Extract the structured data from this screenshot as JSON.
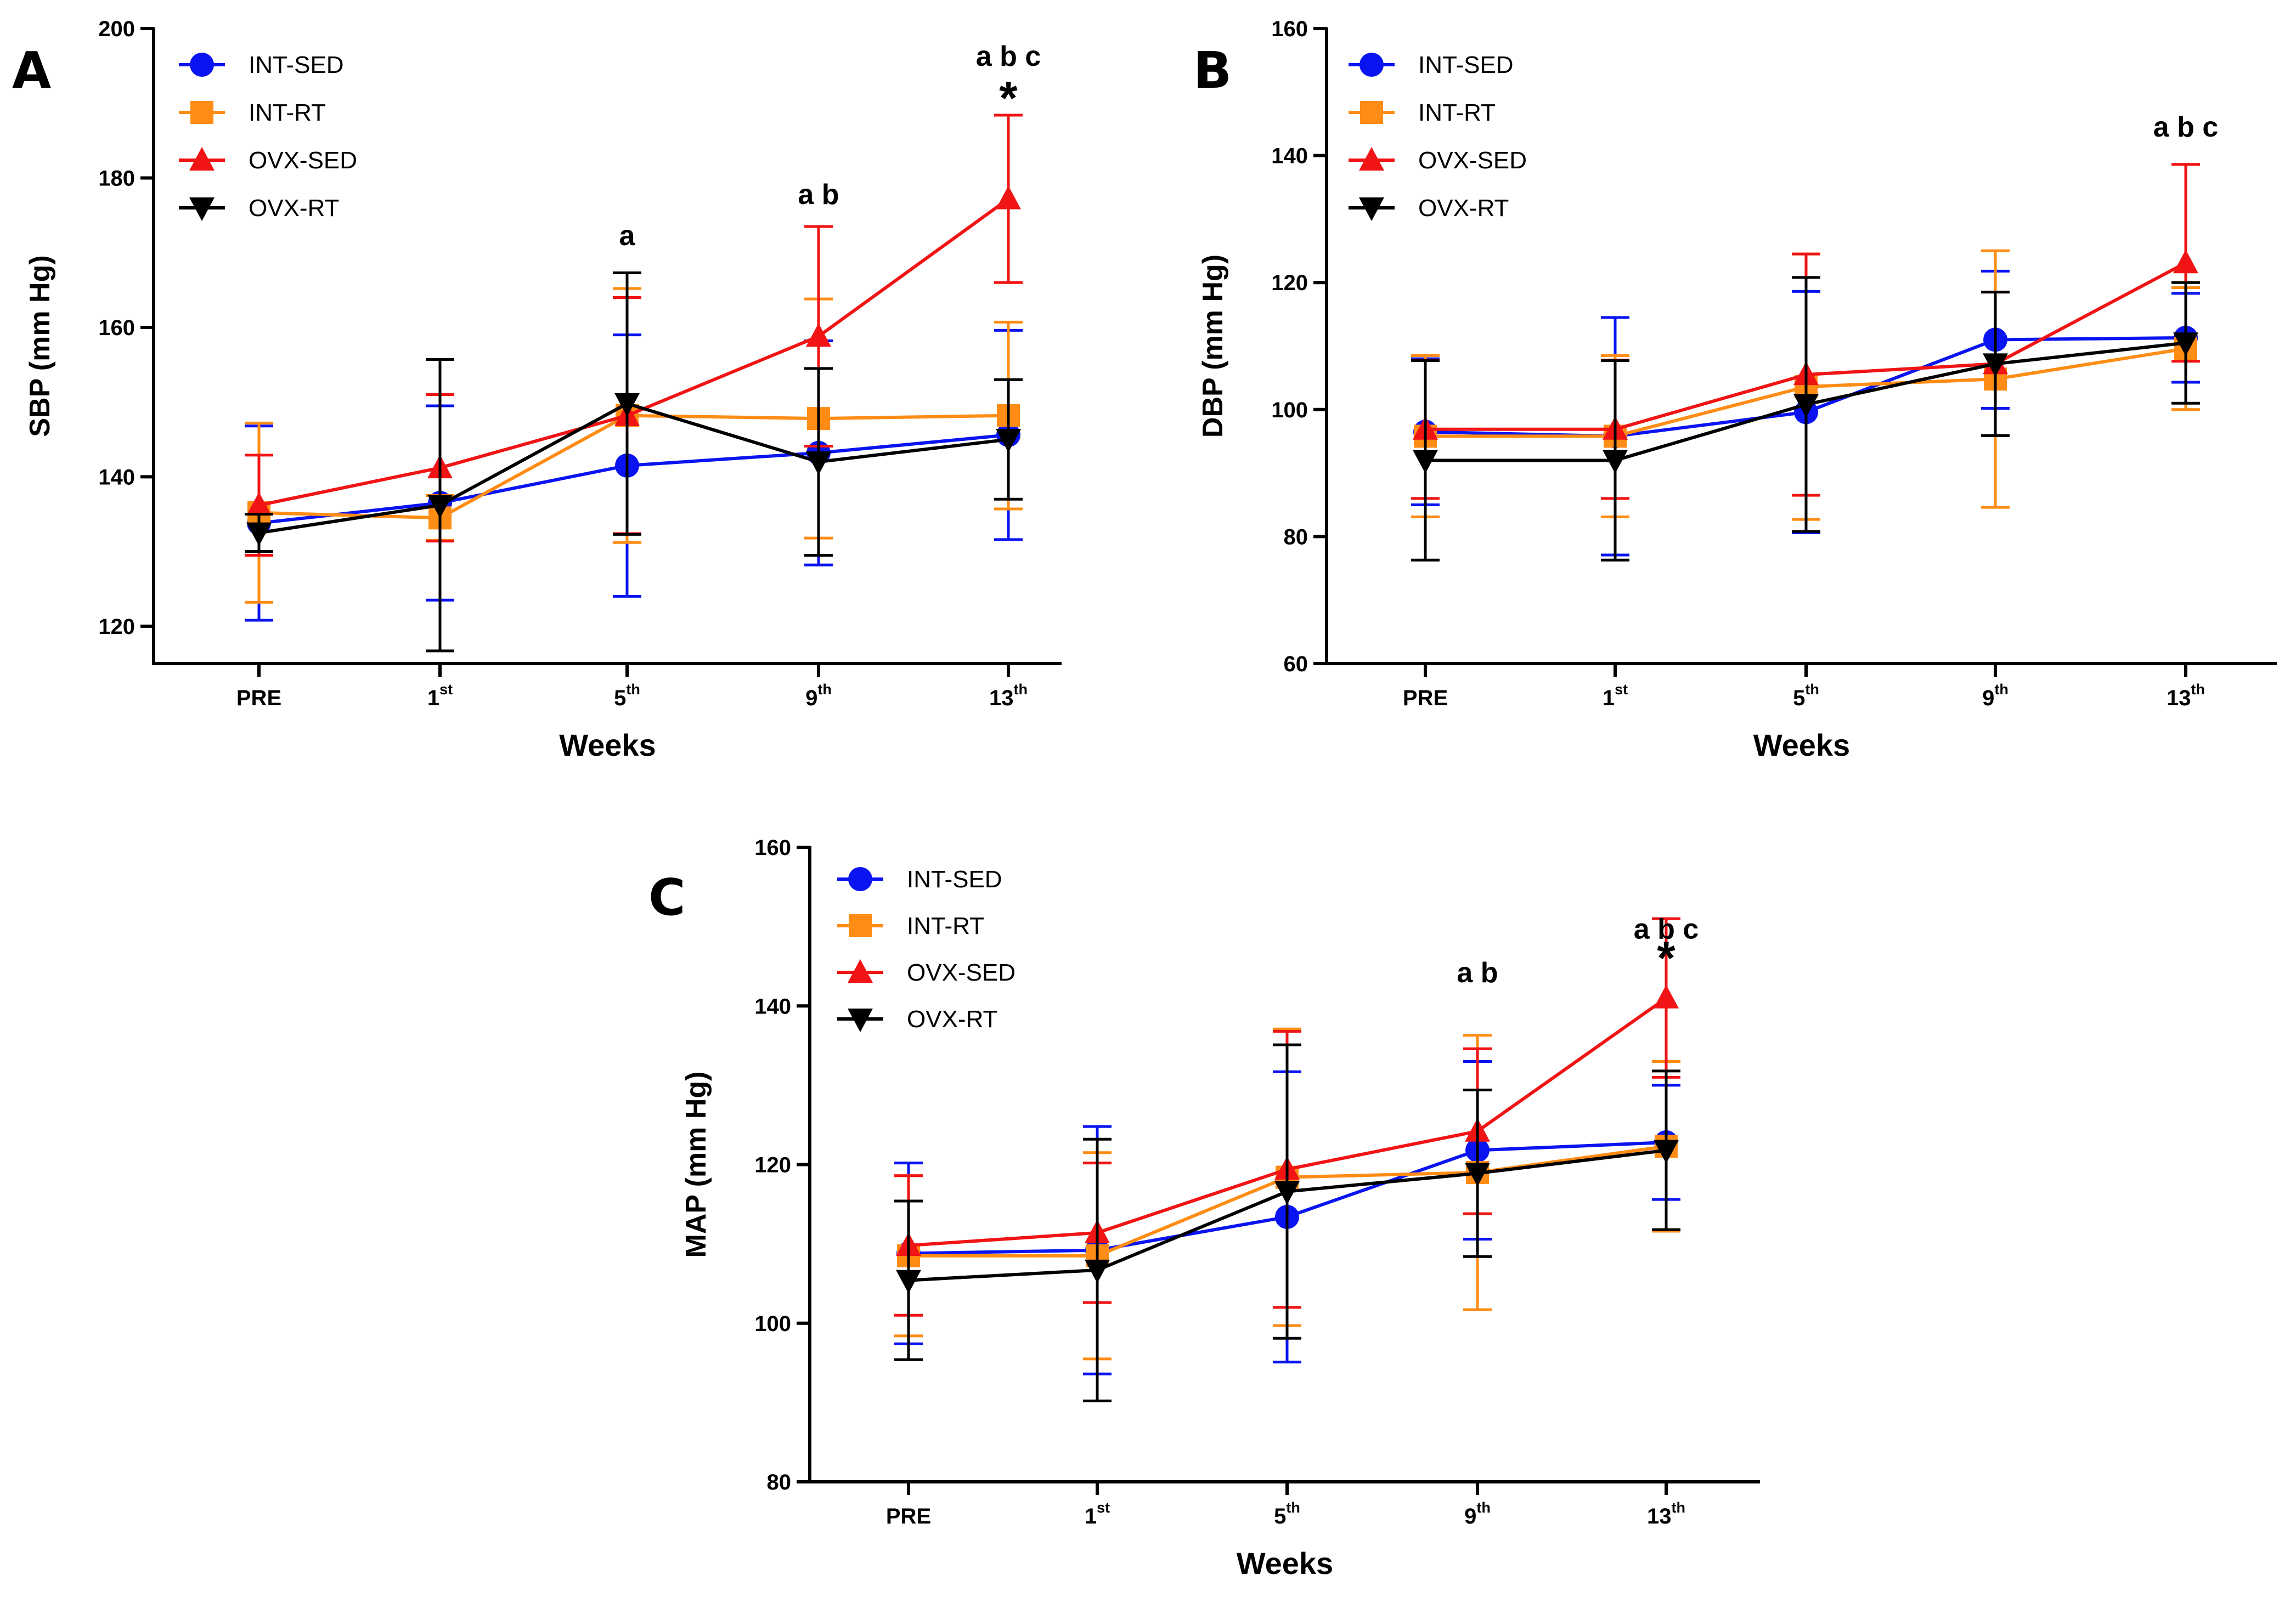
{
  "colors": {
    "INT-SED": "#0a14f0",
    "INT-RT": "#ff8c14",
    "OVX-SED": "#f01414",
    "OVX-RT": "#000000",
    "axis": "#000000"
  },
  "chart_data": [
    {
      "panel": "A",
      "type": "line",
      "ylabel": "SBP (mm Hg)",
      "xlabel": "Weeks",
      "ylim": [
        115,
        200
      ],
      "yticks": [
        120,
        140,
        160,
        180,
        200
      ],
      "categories": [
        {
          "base": "PRE",
          "sup": ""
        },
        {
          "base": "1",
          "sup": "st"
        },
        {
          "base": "5",
          "sup": "th"
        },
        {
          "base": "9",
          "sup": "th"
        },
        {
          "base": "13",
          "sup": "th"
        }
      ],
      "series": [
        {
          "name": "INT-SED",
          "marker": "circle",
          "values": [
            133.8,
            136.5,
            141.5,
            143.2,
            145.6
          ],
          "err": [
            13,
            13,
            17.5,
            15,
            14
          ]
        },
        {
          "name": "INT-RT",
          "marker": "square",
          "values": [
            135.2,
            134.5,
            148.2,
            147.8,
            148.2
          ],
          "err": [
            12,
            3,
            17,
            16,
            12.5
          ]
        },
        {
          "name": "OVX-SED",
          "marker": "triangle-up",
          "values": [
            136.2,
            141.2,
            148.2,
            158.8,
            177.2
          ],
          "err": [
            6.7,
            9.8,
            15.8,
            14.7,
            11.2
          ]
        },
        {
          "name": "OVX-RT",
          "marker": "triangle-down",
          "values": [
            132.5,
            136.2,
            149.8,
            142,
            145
          ],
          "err": [
            2.5,
            19.5,
            17.5,
            12.5,
            8
          ]
        }
      ],
      "annotations": [
        {
          "text": "a",
          "x_index": 2,
          "y": 171
        },
        {
          "text": "a b",
          "x_index": 3,
          "y": 176.5
        },
        {
          "text": "a b c",
          "x_index": 4,
          "y": 195
        },
        {
          "text": "*",
          "x_index": 4,
          "y": 188.5
        }
      ]
    },
    {
      "panel": "B",
      "type": "line",
      "ylabel": "DBP (mm Hg)",
      "xlabel": "Weeks",
      "ylim": [
        60,
        160
      ],
      "yticks": [
        60,
        80,
        100,
        120,
        140,
        160
      ],
      "categories": [
        {
          "base": "PRE",
          "sup": ""
        },
        {
          "base": "1",
          "sup": "st"
        },
        {
          "base": "5",
          "sup": "th"
        },
        {
          "base": "9",
          "sup": "th"
        },
        {
          "base": "13",
          "sup": "th"
        }
      ],
      "series": [
        {
          "name": "INT-SED",
          "marker": "circle",
          "values": [
            96.5,
            95.8,
            99.6,
            111,
            111.3
          ],
          "err": [
            11.5,
            18.7,
            19,
            10.8,
            7
          ]
        },
        {
          "name": "INT-RT",
          "marker": "square",
          "values": [
            95.8,
            95.8,
            103.6,
            104.8,
            109.6
          ],
          "err": [
            12.7,
            12.7,
            20.9,
            20.2,
            9.6
          ]
        },
        {
          "name": "OVX-SED",
          "marker": "triangle-up",
          "values": [
            96.9,
            96.9,
            105.5,
            107.2,
            123.1
          ],
          "err": [
            10.9,
            10.9,
            19,
            11.3,
            15.5
          ]
        },
        {
          "name": "OVX-RT",
          "marker": "triangle-down",
          "values": [
            92,
            92,
            100.8,
            107.2,
            110.5
          ],
          "err": [
            15.7,
            15.7,
            20,
            11.3,
            9.5
          ]
        }
      ],
      "annotations": [
        {
          "text": "a b c",
          "x_index": 4,
          "y": 143
        }
      ]
    },
    {
      "panel": "C",
      "type": "line",
      "ylabel": "MAP (mm Hg)",
      "xlabel": "Weeks",
      "ylim": [
        80,
        160
      ],
      "yticks": [
        80,
        100,
        120,
        140,
        160
      ],
      "categories": [
        {
          "base": "PRE",
          "sup": ""
        },
        {
          "base": "1",
          "sup": "st"
        },
        {
          "base": "5",
          "sup": "th"
        },
        {
          "base": "9",
          "sup": "th"
        },
        {
          "base": "13",
          "sup": "th"
        }
      ],
      "series": [
        {
          "name": "INT-SED",
          "marker": "circle",
          "values": [
            108.8,
            109.2,
            113.4,
            121.8,
            122.8
          ],
          "err": [
            11.4,
            15.6,
            18.3,
            11.2,
            7.2
          ]
        },
        {
          "name": "INT-RT",
          "marker": "square",
          "values": [
            108.5,
            108.5,
            118.4,
            119,
            122.3
          ],
          "err": [
            10.1,
            13,
            18.7,
            17.3,
            10.7
          ]
        },
        {
          "name": "OVX-SED",
          "marker": "triangle-up",
          "values": [
            109.8,
            111.4,
            119.4,
            124.2,
            141
          ],
          "err": [
            8.8,
            8.8,
            17.4,
            10.4,
            10
          ]
        },
        {
          "name": "OVX-RT",
          "marker": "triangle-down",
          "values": [
            105.4,
            106.7,
            116.6,
            118.9,
            121.8
          ],
          "err": [
            10,
            16.5,
            18.5,
            10.5,
            10
          ]
        }
      ],
      "annotations": [
        {
          "text": "a b",
          "x_index": 3,
          "y": 143
        },
        {
          "text": "a b c",
          "x_index": 4,
          "y": 148.5
        },
        {
          "text": "*",
          "x_index": 4,
          "y": 144
        }
      ]
    }
  ]
}
